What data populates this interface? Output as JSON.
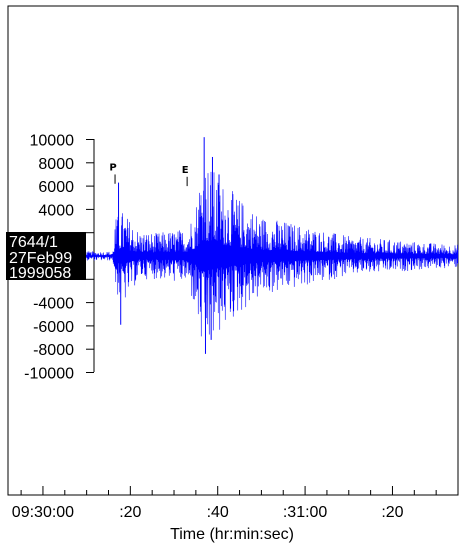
{
  "chart_data": {
    "type": "line",
    "title": "",
    "xlabel": "Time (hr:min:sec)",
    "ylabel": "",
    "x_tick_labels": [
      "09:30:00",
      ":20",
      ":40",
      ":31:00",
      ":20"
    ],
    "x_tick_seconds": [
      0,
      20,
      40,
      60,
      80
    ],
    "xlim_seconds": [
      -8,
      95
    ],
    "y_ticks": [
      10000,
      8000,
      6000,
      4000,
      2000,
      0,
      -2000,
      -4000,
      -6000,
      -8000,
      -10000
    ],
    "y_tick_labels": [
      "10000",
      "8000",
      "6000",
      "4000",
      "",
      "",
      "",
      "-4000",
      "-6000",
      "-8000",
      "-10000"
    ],
    "ylim": [
      -10000,
      10000
    ],
    "station_labels": [
      "7644/1",
      "27Feb99",
      "1999058"
    ],
    "phase_markers": [
      {
        "label": "P",
        "time_seconds": 16.5,
        "top_value": 7000,
        "bottom_value": 6200
      },
      {
        "label": "E",
        "time_seconds": 33.0,
        "top_value": 6800,
        "bottom_value": 6000
      }
    ],
    "envelope": {
      "times_seconds": [
        -8,
        16,
        16.5,
        18,
        22,
        26,
        33,
        35,
        36.5,
        38,
        41,
        45,
        50,
        60,
        70,
        80,
        90,
        95
      ],
      "max": [
        400,
        400,
        3200,
        4000,
        2200,
        2000,
        2400,
        4500,
        9000,
        8000,
        6500,
        5000,
        3500,
        2600,
        1700,
        1400,
        1100,
        1000
      ],
      "min": [
        -400,
        -400,
        -2800,
        -4500,
        -2000,
        -2000,
        -2400,
        -5000,
        -9000,
        -8000,
        -6500,
        -5000,
        -3500,
        -2600,
        -1700,
        -1400,
        -1100,
        -1000
      ]
    },
    "peaks": [
      {
        "time_seconds": 17.3,
        "value": 6300
      },
      {
        "time_seconds": 17.8,
        "value": -5900
      },
      {
        "time_seconds": 36.9,
        "value": 10200
      },
      {
        "time_seconds": 37.2,
        "value": -8400
      },
      {
        "time_seconds": 38.8,
        "value": 8500
      },
      {
        "time_seconds": 38.5,
        "value": -7200
      },
      {
        "time_seconds": 40.3,
        "value": 7000
      }
    ],
    "grid": false,
    "legend": "none",
    "colors": {
      "trace": "#0000ff",
      "axes": "#000000",
      "label_bg": "#000000",
      "label_text": "#ffffff"
    }
  }
}
